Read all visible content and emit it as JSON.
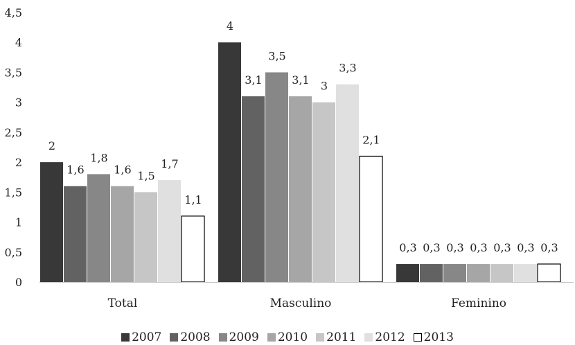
{
  "chart_data": {
    "type": "bar",
    "categories": [
      "Total",
      "Masculino",
      "Feminino"
    ],
    "ylim": [
      0,
      4.5
    ],
    "yticks": [
      "0",
      "0,5",
      "1",
      "1,5",
      "2",
      "2,5",
      "3",
      "3,5",
      "4",
      "4,5"
    ],
    "grid": false,
    "legend_position": "bottom",
    "series": [
      {
        "name": "2007",
        "color": "#383838",
        "values": [
          2,
          4,
          0.3
        ],
        "labels": [
          "2",
          "4",
          "0,3"
        ]
      },
      {
        "name": "2008",
        "color": "#626262",
        "values": [
          1.6,
          3.1,
          0.3
        ],
        "labels": [
          "1,6",
          "3,1",
          "0,3"
        ]
      },
      {
        "name": "2009",
        "color": "#878787",
        "values": [
          1.8,
          3.5,
          0.3
        ],
        "labels": [
          "1,8",
          "3,5",
          "0,3"
        ]
      },
      {
        "name": "2010",
        "color": "#a6a6a6",
        "values": [
          1.6,
          3.1,
          0.3
        ],
        "labels": [
          "1,6",
          "3,1",
          "0,3"
        ]
      },
      {
        "name": "2011",
        "color": "#c6c6c6",
        "values": [
          1.5,
          3,
          0.3
        ],
        "labels": [
          "1,5",
          "3",
          "0,3"
        ]
      },
      {
        "name": "2012",
        "color": "#e0e0e0",
        "values": [
          1.7,
          3.3,
          0.3
        ],
        "labels": [
          "1,7",
          "3,3",
          "0,3"
        ]
      },
      {
        "name": "2013",
        "color": "#ffffff",
        "values": [
          1.1,
          2.1,
          0.3
        ],
        "labels": [
          "1,1",
          "2,1",
          "0,3"
        ]
      }
    ]
  }
}
